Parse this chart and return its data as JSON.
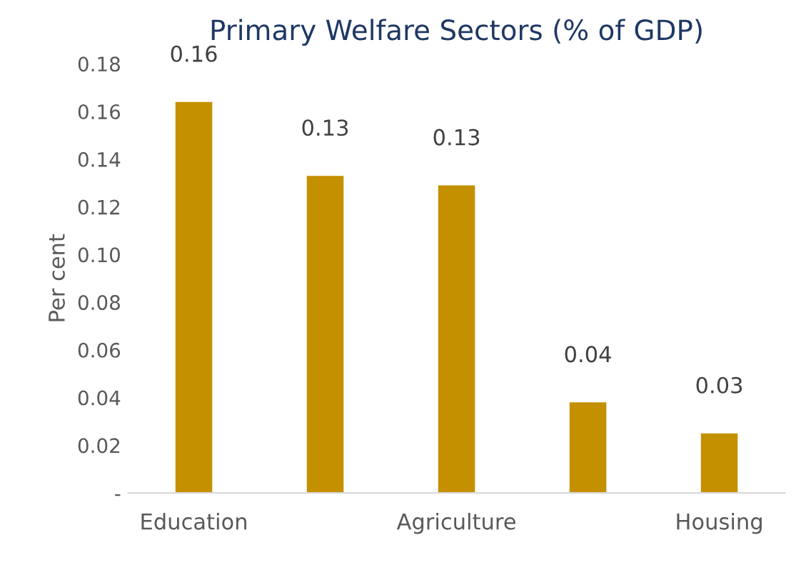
{
  "chart_data": {
    "type": "bar",
    "title": "Primary Welfare Sectors (% of GDP)",
    "ylabel": "Per cent",
    "categories": [
      "Education",
      null,
      "Agriculture",
      null,
      "Housing"
    ],
    "values": [
      0.164,
      0.133,
      0.129,
      0.038,
      0.025
    ],
    "value_labels": [
      "0.16",
      "0.13",
      "0.13",
      "0.04",
      "0.03"
    ],
    "color": "#c49000",
    "ylim": [
      0,
      0.18
    ],
    "yticks": [
      {
        "value": 0,
        "label": "-"
      },
      0.02,
      0.04,
      0.06,
      0.08,
      {
        "value": 0.1,
        "label": "0.10"
      },
      0.12,
      0.14,
      0.16,
      0.18
    ],
    "grid": false,
    "legend": false
  }
}
